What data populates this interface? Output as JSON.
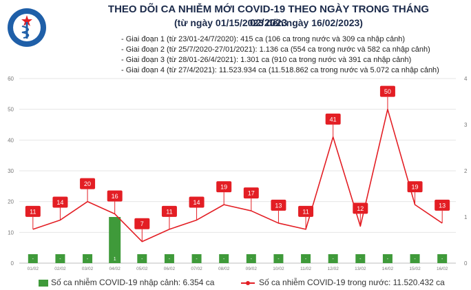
{
  "header": {
    "logo_text": "BỘ Y TẾ · MINISTRY OF HEALTH",
    "title": "THEO DÕI CA NHIỄM MỚI COVID-19 THEO NGÀY TRONG THÁNG 02/2023",
    "subtitle": "(từ ngày 01/15/2023 đến ngày 16/02/2023)",
    "phases": [
      "- Giai đoạn 1 (từ 23/01-24/7/2020): 415 ca (106 ca trong nước và 309 ca nhập cảnh)",
      "- Giai đoạn 2 (từ 25/7/2020-27/01/2021): 1.136 ca (554 ca trong nước và 582 ca nhập cảnh)",
      "- Giai đoạn 3 (từ 28/01-26/4/2021): 1.301 ca (910 ca trong nước và 391 ca nhập cảnh)",
      "- Giai đoạn 4 (từ 27/4/2021): 11.523.934 ca (11.518.862 ca trong nước và 5.072 ca nhập cảnh)"
    ]
  },
  "colors": {
    "line": "#e31e24",
    "bar": "#3f9a3a",
    "title": "#1b2a4a",
    "logo_blue": "#1f5fa8"
  },
  "chart_data": {
    "type": "bar+line",
    "categories": [
      "01/02",
      "02/02",
      "03/02",
      "04/02",
      "05/02",
      "06/02",
      "07/02",
      "08/02",
      "09/02",
      "10/02",
      "11/02",
      "12/02",
      "13/02",
      "14/02",
      "15/02",
      "16/02"
    ],
    "series": [
      {
        "name": "Số ca nhiễm COVID-19 nhập cảnh: 6.354 ca",
        "type": "bar",
        "axis": "right",
        "values": [
          0,
          0,
          0,
          1,
          0,
          0,
          0,
          0,
          0,
          0,
          0,
          0,
          0,
          0,
          0,
          0
        ],
        "labels": [
          "-",
          "-",
          "-",
          "1",
          "-",
          "-",
          "-",
          "-",
          "-",
          "-",
          "-",
          "-",
          "-",
          "-",
          "-",
          "-"
        ]
      },
      {
        "name": "Số ca nhiễm COVID-19 trong nước: 11.520.432 ca",
        "type": "line",
        "axis": "left",
        "values": [
          11,
          14,
          20,
          16,
          7,
          11,
          14,
          19,
          17,
          13,
          11,
          41,
          12,
          50,
          19,
          13
        ]
      }
    ],
    "y_left": {
      "min": 0,
      "max": 60,
      "ticks": [
        0,
        10,
        20,
        30,
        40,
        50,
        60
      ]
    },
    "y_right": {
      "min": 0,
      "max": 4,
      "ticks": [
        0,
        1,
        2,
        3,
        4
      ]
    },
    "grid": true,
    "legend_position": "bottom"
  }
}
